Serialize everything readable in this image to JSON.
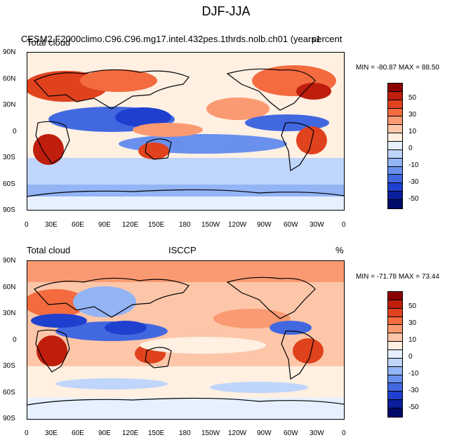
{
  "main_title": "DJF-JJA",
  "panels": [
    {
      "left_title": "Total cloud",
      "center_title": "CESM2.F2000climo.C96.C96.mg17.intel.432pes.1thrds.nolb.ch01 (years1",
      "units": "percent",
      "stats": "MIN = -80.87  MAX =  88.50"
    },
    {
      "left_title": "Total cloud",
      "center_title": "ISCCP",
      "units": "%",
      "stats": "MIN = -71.78  MAX =  73.44"
    }
  ],
  "lat_ticks": [
    "90N",
    "60N",
    "30N",
    "0",
    "30S",
    "60S",
    "90S"
  ],
  "lon_ticks": [
    "0",
    "30E",
    "60E",
    "90E",
    "120E",
    "150E",
    "180",
    "150W",
    "120W",
    "90W",
    "60W",
    "30W",
    "0"
  ],
  "colorbar": {
    "labels": [
      "50",
      "30",
      "10",
      "0",
      "-10",
      "-30",
      "-50"
    ],
    "colors": [
      "#8b0000",
      "#bf1e0c",
      "#e0421e",
      "#f36b3f",
      "#fa9a72",
      "#fdc6a8",
      "#fff0e2",
      "#e6f0ff",
      "#bfd5fb",
      "#93b4f5",
      "#6a90ee",
      "#4268e0",
      "#1f3fcf",
      "#0a1f9c",
      "#000a6a"
    ]
  }
}
